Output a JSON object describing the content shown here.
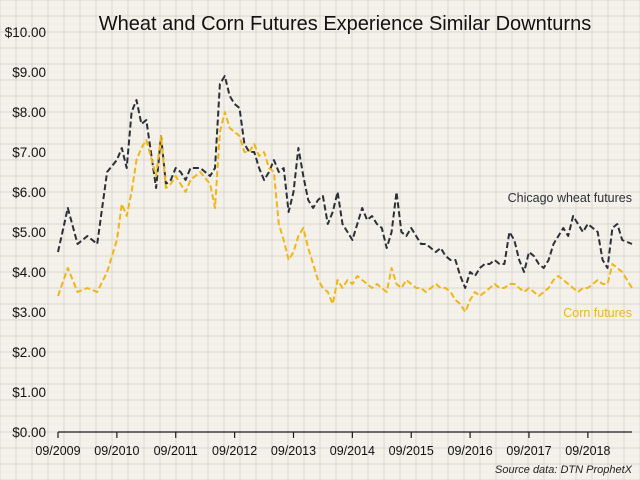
{
  "chart_data": {
    "type": "line",
    "title": "Wheat and Corn Futures Experience Similar Downturns",
    "xlabel": "",
    "ylabel": "",
    "source": "Source data: DTN ProphetX",
    "ylim": [
      0,
      10
    ],
    "yticks": [
      "$0.00",
      "$1.00",
      "$2.00",
      "$3.00",
      "$4.00",
      "$5.00",
      "$6.00",
      "$7.00",
      "$8.00",
      "$9.00",
      "$10.00"
    ],
    "xticks": [
      "09/2009",
      "09/2010",
      "09/2011",
      "09/2012",
      "09/2013",
      "09/2014",
      "09/2015",
      "09/2016",
      "09/2017",
      "09/2018"
    ],
    "x_start": "09/2009",
    "x_end": "06/2019",
    "grid": true,
    "legend": "inline labels at right end of lines",
    "series": [
      {
        "name": "Chicago wheat futures",
        "color": "#2b2f38",
        "dash": true,
        "values": [
          [
            "09/2009",
            4.5
          ],
          [
            "11/2009",
            5.6
          ],
          [
            "01/2010",
            4.7
          ],
          [
            "03/2010",
            4.9
          ],
          [
            "05/2010",
            4.7
          ],
          [
            "07/2010",
            6.5
          ],
          [
            "09/2010",
            6.8
          ],
          [
            "10/2010",
            7.1
          ],
          [
            "11/2010",
            6.6
          ],
          [
            "12/2010",
            8.0
          ],
          [
            "01/2011",
            8.3
          ],
          [
            "02/2011",
            7.7
          ],
          [
            "03/2011",
            7.8
          ],
          [
            "05/2011",
            6.1
          ],
          [
            "06/2011",
            7.4
          ],
          [
            "07/2011",
            6.2
          ],
          [
            "08/2011",
            6.3
          ],
          [
            "09/2011",
            6.6
          ],
          [
            "10/2011",
            6.5
          ],
          [
            "11/2011",
            6.3
          ],
          [
            "12/2011",
            6.6
          ],
          [
            "02/2012",
            6.6
          ],
          [
            "04/2012",
            6.4
          ],
          [
            "05/2012",
            6.6
          ],
          [
            "06/2012",
            8.7
          ],
          [
            "07/2012",
            8.9
          ],
          [
            "08/2012",
            8.4
          ],
          [
            "09/2012",
            8.2
          ],
          [
            "10/2012",
            8.1
          ],
          [
            "11/2012",
            7.2
          ],
          [
            "12/2012",
            7.0
          ],
          [
            "01/2013",
            7.0
          ],
          [
            "02/2013",
            6.6
          ],
          [
            "03/2013",
            6.3
          ],
          [
            "04/2013",
            6.5
          ],
          [
            "05/2013",
            6.8
          ],
          [
            "06/2013",
            6.5
          ],
          [
            "07/2013",
            6.6
          ],
          [
            "08/2013",
            5.5
          ],
          [
            "09/2013",
            6.0
          ],
          [
            "10/2013",
            7.1
          ],
          [
            "11/2013",
            6.4
          ],
          [
            "12/2013",
            5.8
          ],
          [
            "01/2014",
            5.6
          ],
          [
            "02/2014",
            5.8
          ],
          [
            "03/2014",
            5.9
          ],
          [
            "04/2014",
            5.2
          ],
          [
            "05/2014",
            5.5
          ],
          [
            "06/2014",
            6.0
          ],
          [
            "07/2014",
            5.2
          ],
          [
            "08/2014",
            5.0
          ],
          [
            "09/2014",
            4.8
          ],
          [
            "10/2014",
            5.2
          ],
          [
            "11/2014",
            5.6
          ],
          [
            "12/2014",
            5.3
          ],
          [
            "01/2015",
            5.4
          ],
          [
            "02/2015",
            5.2
          ],
          [
            "03/2015",
            5.1
          ],
          [
            "04/2015",
            4.6
          ],
          [
            "05/2015",
            5.0
          ],
          [
            "06/2015",
            6.0
          ],
          [
            "07/2015",
            5.0
          ],
          [
            "08/2015",
            4.9
          ],
          [
            "09/2015",
            5.1
          ],
          [
            "10/2015",
            4.9
          ],
          [
            "11/2015",
            4.7
          ],
          [
            "12/2015",
            4.7
          ],
          [
            "01/2016",
            4.6
          ],
          [
            "02/2016",
            4.5
          ],
          [
            "03/2016",
            4.6
          ],
          [
            "04/2016",
            4.4
          ],
          [
            "05/2016",
            4.3
          ],
          [
            "06/2016",
            4.3
          ],
          [
            "07/2016",
            3.9
          ],
          [
            "08/2016",
            3.6
          ],
          [
            "09/2016",
            4.0
          ],
          [
            "10/2016",
            3.9
          ],
          [
            "11/2016",
            4.1
          ],
          [
            "12/2016",
            4.2
          ],
          [
            "01/2017",
            4.2
          ],
          [
            "02/2017",
            4.3
          ],
          [
            "03/2017",
            4.2
          ],
          [
            "04/2017",
            4.2
          ],
          [
            "05/2017",
            5.0
          ],
          [
            "06/2017",
            4.8
          ],
          [
            "07/2017",
            4.3
          ],
          [
            "08/2017",
            4.0
          ],
          [
            "09/2017",
            4.5
          ],
          [
            "10/2017",
            4.4
          ],
          [
            "11/2017",
            4.2
          ],
          [
            "12/2017",
            4.1
          ],
          [
            "01/2018",
            4.3
          ],
          [
            "02/2018",
            4.7
          ],
          [
            "03/2018",
            4.9
          ],
          [
            "04/2018",
            5.1
          ],
          [
            "05/2018",
            4.9
          ],
          [
            "06/2018",
            5.4
          ],
          [
            "07/2018",
            5.2
          ],
          [
            "08/2018",
            5.0
          ],
          [
            "09/2018",
            5.2
          ],
          [
            "10/2018",
            5.1
          ],
          [
            "11/2018",
            5.0
          ],
          [
            "12/2018",
            4.3
          ],
          [
            "01/2019",
            4.1
          ],
          [
            "02/2019",
            5.1
          ],
          [
            "03/2019",
            5.2
          ],
          [
            "04/2019",
            4.8
          ],
          [
            "06/2019",
            4.7
          ]
        ]
      },
      {
        "name": "Corn futures",
        "color": "#f0b616",
        "dash": true,
        "values": [
          [
            "09/2009",
            3.4
          ],
          [
            "11/2009",
            4.1
          ],
          [
            "01/2010",
            3.5
          ],
          [
            "03/2010",
            3.6
          ],
          [
            "05/2010",
            3.5
          ],
          [
            "07/2010",
            4.0
          ],
          [
            "09/2010",
            4.8
          ],
          [
            "10/2010",
            5.7
          ],
          [
            "11/2010",
            5.4
          ],
          [
            "12/2010",
            6.0
          ],
          [
            "01/2011",
            6.8
          ],
          [
            "02/2011",
            7.1
          ],
          [
            "03/2011",
            7.3
          ],
          [
            "05/2011",
            6.4
          ],
          [
            "06/2011",
            7.4
          ],
          [
            "07/2011",
            6.1
          ],
          [
            "08/2011",
            6.2
          ],
          [
            "09/2011",
            6.4
          ],
          [
            "10/2011",
            6.2
          ],
          [
            "11/2011",
            6.0
          ],
          [
            "12/2011",
            6.3
          ],
          [
            "02/2012",
            6.5
          ],
          [
            "04/2012",
            6.2
          ],
          [
            "05/2012",
            5.6
          ],
          [
            "06/2012",
            7.5
          ],
          [
            "07/2012",
            8.0
          ],
          [
            "08/2012",
            7.6
          ],
          [
            "09/2012",
            7.5
          ],
          [
            "10/2012",
            7.4
          ],
          [
            "11/2012",
            7.0
          ],
          [
            "12/2012",
            7.0
          ],
          [
            "01/2013",
            7.2
          ],
          [
            "02/2013",
            6.9
          ],
          [
            "03/2013",
            7.0
          ],
          [
            "04/2013",
            6.6
          ],
          [
            "05/2013",
            6.5
          ],
          [
            "06/2013",
            5.2
          ],
          [
            "07/2013",
            4.8
          ],
          [
            "08/2013",
            4.3
          ],
          [
            "09/2013",
            4.5
          ],
          [
            "10/2013",
            4.9
          ],
          [
            "11/2013",
            5.1
          ],
          [
            "12/2013",
            4.6
          ],
          [
            "01/2014",
            4.2
          ],
          [
            "02/2014",
            3.8
          ],
          [
            "03/2014",
            3.6
          ],
          [
            "04/2014",
            3.5
          ],
          [
            "05/2014",
            3.2
          ],
          [
            "06/2014",
            3.8
          ],
          [
            "07/2014",
            3.6
          ],
          [
            "08/2014",
            3.8
          ],
          [
            "09/2014",
            3.7
          ],
          [
            "10/2014",
            3.9
          ],
          [
            "11/2014",
            3.8
          ],
          [
            "12/2014",
            3.7
          ],
          [
            "01/2015",
            3.6
          ],
          [
            "02/2015",
            3.7
          ],
          [
            "03/2015",
            3.6
          ],
          [
            "04/2015",
            3.5
          ],
          [
            "05/2015",
            4.1
          ],
          [
            "06/2015",
            3.7
          ],
          [
            "07/2015",
            3.6
          ],
          [
            "08/2015",
            3.8
          ],
          [
            "09/2015",
            3.7
          ],
          [
            "10/2015",
            3.6
          ],
          [
            "11/2015",
            3.6
          ],
          [
            "12/2015",
            3.5
          ],
          [
            "01/2016",
            3.6
          ],
          [
            "02/2016",
            3.7
          ],
          [
            "03/2016",
            3.6
          ],
          [
            "04/2016",
            3.6
          ],
          [
            "05/2016",
            3.5
          ],
          [
            "06/2016",
            3.3
          ],
          [
            "07/2016",
            3.2
          ],
          [
            "08/2016",
            3.0
          ],
          [
            "09/2016",
            3.3
          ],
          [
            "10/2016",
            3.5
          ],
          [
            "11/2016",
            3.4
          ],
          [
            "12/2016",
            3.5
          ],
          [
            "01/2017",
            3.6
          ],
          [
            "02/2017",
            3.7
          ],
          [
            "03/2017",
            3.6
          ],
          [
            "04/2017",
            3.6
          ],
          [
            "05/2017",
            3.7
          ],
          [
            "06/2017",
            3.7
          ],
          [
            "07/2017",
            3.6
          ],
          [
            "08/2017",
            3.5
          ],
          [
            "09/2017",
            3.6
          ],
          [
            "10/2017",
            3.5
          ],
          [
            "11/2017",
            3.4
          ],
          [
            "12/2017",
            3.5
          ],
          [
            "01/2018",
            3.6
          ],
          [
            "02/2018",
            3.8
          ],
          [
            "03/2018",
            3.9
          ],
          [
            "04/2018",
            3.8
          ],
          [
            "05/2018",
            3.7
          ],
          [
            "06/2018",
            3.6
          ],
          [
            "07/2018",
            3.5
          ],
          [
            "08/2018",
            3.6
          ],
          [
            "09/2018",
            3.6
          ],
          [
            "10/2018",
            3.7
          ],
          [
            "11/2018",
            3.8
          ],
          [
            "12/2018",
            3.7
          ],
          [
            "01/2019",
            3.7
          ],
          [
            "02/2019",
            4.2
          ],
          [
            "03/2019",
            4.1
          ],
          [
            "04/2019",
            4.0
          ],
          [
            "06/2019",
            3.6
          ]
        ]
      }
    ]
  }
}
